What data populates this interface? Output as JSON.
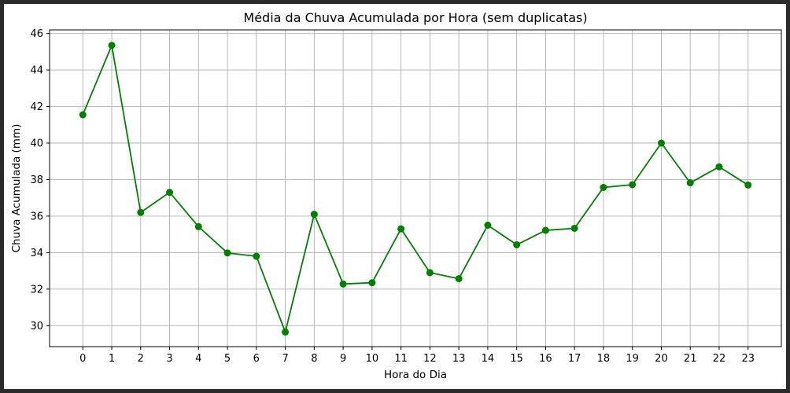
{
  "chart_data": {
    "type": "line",
    "title": "Média da Chuva Acumulada por Hora (sem duplicatas)",
    "xlabel": "Hora do Dia",
    "ylabel": "Chuva Acumulada (mm)",
    "x": [
      0,
      1,
      2,
      3,
      4,
      5,
      6,
      7,
      8,
      9,
      10,
      11,
      12,
      13,
      14,
      15,
      16,
      17,
      18,
      19,
      20,
      21,
      22,
      23
    ],
    "x_tick_labels": [
      "0",
      "1",
      "2",
      "3",
      "4",
      "5",
      "6",
      "7",
      "8",
      "9",
      "10",
      "11",
      "12",
      "13",
      "14",
      "15",
      "16",
      "17",
      "18",
      "19",
      "20",
      "21",
      "22",
      "23"
    ],
    "y_ticks": [
      30,
      32,
      34,
      36,
      38,
      40,
      42,
      44,
      46
    ],
    "y_tick_labels": [
      "30",
      "32",
      "34",
      "36",
      "38",
      "40",
      "42",
      "44",
      "46"
    ],
    "xlim": [
      -1.15,
      24.15
    ],
    "ylim": [
      28.85,
      46.2
    ],
    "grid": true,
    "series": [
      {
        "color": "#008000",
        "marker": "circle",
        "values": [
          41.55,
          45.35,
          36.2,
          37.3,
          35.42,
          33.98,
          33.8,
          29.65,
          36.1,
          32.28,
          32.35,
          35.3,
          32.9,
          32.57,
          35.5,
          34.43,
          35.22,
          35.33,
          37.57,
          37.72,
          40.0,
          37.82,
          38.7,
          37.7
        ]
      }
    ]
  }
}
